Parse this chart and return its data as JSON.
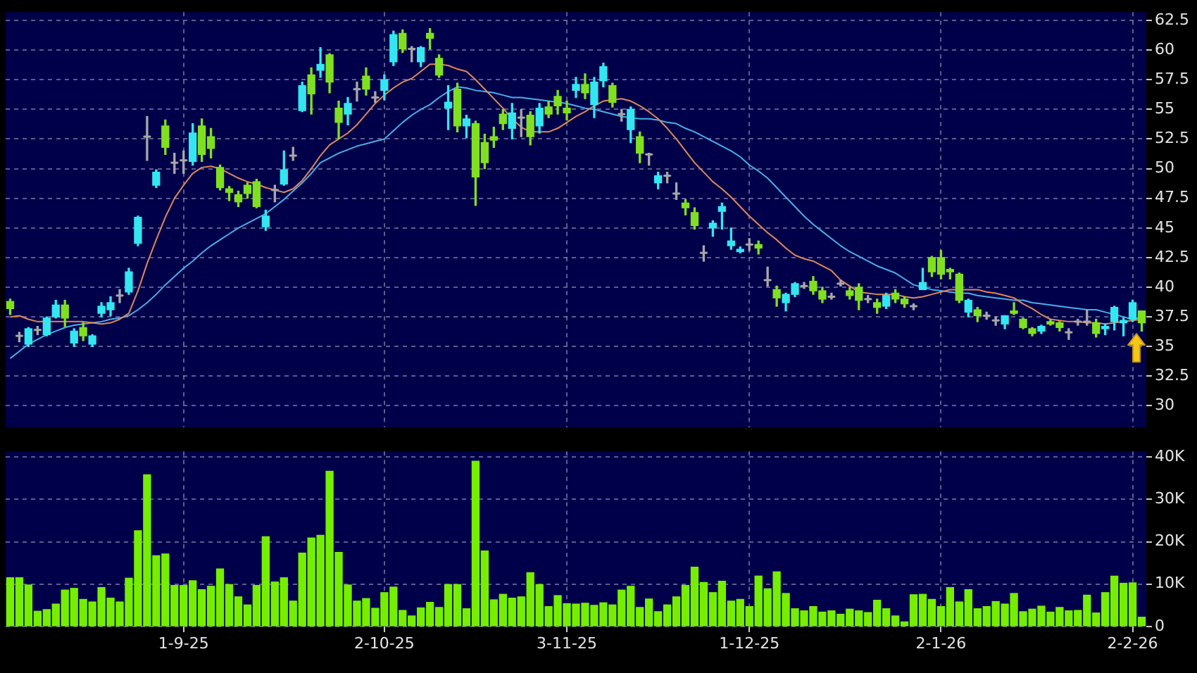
{
  "chart_data": [
    {
      "type": "candlestick",
      "categories": [
        null,
        null,
        null,
        null,
        null,
        null,
        null,
        null,
        null,
        null,
        null,
        null,
        null,
        null,
        null,
        null,
        null,
        null,
        null,
        null,
        null,
        null,
        null,
        null,
        null,
        null,
        null,
        null,
        null,
        null,
        null,
        null,
        null,
        null,
        null,
        null,
        null,
        null,
        null,
        null,
        null,
        null,
        null,
        null,
        null,
        null,
        null,
        null,
        null,
        null,
        null,
        null,
        null,
        null,
        null,
        null,
        null,
        null,
        null,
        null,
        null,
        null,
        null,
        null,
        null,
        null,
        null,
        null,
        null,
        null,
        null,
        null,
        null,
        null,
        null,
        null,
        null,
        null,
        null,
        null,
        null,
        null,
        null,
        null,
        null,
        null,
        null,
        null,
        null,
        null,
        null,
        null,
        null,
        null,
        null,
        null,
        null,
        null,
        null,
        null,
        null,
        null,
        null,
        null,
        null,
        null,
        null,
        null,
        null,
        null,
        null,
        null,
        null,
        null,
        null,
        null,
        null,
        null,
        null,
        null,
        null,
        null,
        null,
        null,
        null
      ],
      "ohlc": [
        [
          38.8,
          39.0,
          37.7,
          38.2
        ],
        [
          35.9,
          36.2,
          35.4,
          35.9
        ],
        [
          35.2,
          36.6,
          35.0,
          36.5
        ],
        [
          36.4,
          36.7,
          36.0,
          36.4
        ],
        [
          36.0,
          37.5,
          35.9,
          37.4
        ],
        [
          37.5,
          38.9,
          37.4,
          38.5
        ],
        [
          38.5,
          38.9,
          36.7,
          37.4
        ],
        [
          35.3,
          36.5,
          35.0,
          36.3
        ],
        [
          36.6,
          37.0,
          35.5,
          35.9
        ],
        [
          35.2,
          36.0,
          35.0,
          35.9
        ],
        [
          37.8,
          38.7,
          37.5,
          38.4
        ],
        [
          38.1,
          39.2,
          37.6,
          38.7
        ],
        [
          39.3,
          39.8,
          38.7,
          39.3
        ],
        [
          39.6,
          41.6,
          39.4,
          41.3
        ],
        [
          43.7,
          46.0,
          43.5,
          45.9
        ],
        [
          52.7,
          54.4,
          50.7,
          52.7
        ],
        [
          48.6,
          49.9,
          48.4,
          49.7
        ],
        [
          53.6,
          54.1,
          51.2,
          51.8
        ],
        [
          50.5,
          51.3,
          49.6,
          50.5
        ],
        [
          50.7,
          51.5,
          49.6,
          50.7
        ],
        [
          50.6,
          53.8,
          50.3,
          53.0
        ],
        [
          53.6,
          54.2,
          50.6,
          51.2
        ],
        [
          52.7,
          53.4,
          50.9,
          51.7
        ],
        [
          50.1,
          50.3,
          48.2,
          48.4
        ],
        [
          48.3,
          48.5,
          47.3,
          48.0
        ],
        [
          47.8,
          48.1,
          46.8,
          47.2
        ],
        [
          48.6,
          48.8,
          47.5,
          47.9
        ],
        [
          48.9,
          49.1,
          46.7,
          46.8
        ],
        [
          45.1,
          46.5,
          44.8,
          46.0
        ],
        [
          48.2,
          48.6,
          47.2,
          48.2
        ],
        [
          48.7,
          51.5,
          48.6,
          49.9
        ],
        [
          51.1,
          51.8,
          50.7,
          51.1
        ],
        [
          54.9,
          57.3,
          54.8,
          57.0
        ],
        [
          57.9,
          58.5,
          54.6,
          56.3
        ],
        [
          58.3,
          60.2,
          57.7,
          58.8
        ],
        [
          59.6,
          59.7,
          56.4,
          57.3
        ],
        [
          55.1,
          55.7,
          52.5,
          53.9
        ],
        [
          54.6,
          56.0,
          53.7,
          55.5
        ],
        [
          56.7,
          57.3,
          55.7,
          56.7
        ],
        [
          57.8,
          58.5,
          56.2,
          56.7
        ],
        [
          56.0,
          56.5,
          55.6,
          56.0
        ],
        [
          56.6,
          57.9,
          55.8,
          57.5
        ],
        [
          59.0,
          61.6,
          58.7,
          61.3
        ],
        [
          61.4,
          61.7,
          59.8,
          60.1
        ],
        [
          60.1,
          60.3,
          59.0,
          60.1
        ],
        [
          59.0,
          60.3,
          58.6,
          60.2
        ],
        [
          61.4,
          61.8,
          60.1,
          61.0
        ],
        [
          59.3,
          59.6,
          57.7,
          57.9
        ],
        [
          55.1,
          57.0,
          53.3,
          55.6
        ],
        [
          56.7,
          57.2,
          53.1,
          53.6
        ],
        [
          53.6,
          54.5,
          52.6,
          54.2
        ],
        [
          53.8,
          54.0,
          46.9,
          49.3
        ],
        [
          52.2,
          52.9,
          50.0,
          50.5
        ],
        [
          52.7,
          53.5,
          51.8,
          52.4
        ],
        [
          54.6,
          55.0,
          53.3,
          53.8
        ],
        [
          53.4,
          55.5,
          52.5,
          54.7
        ],
        [
          54.3,
          55.0,
          52.7,
          54.3
        ],
        [
          54.5,
          54.8,
          52.0,
          52.7
        ],
        [
          53.6,
          55.5,
          53.0,
          55.1
        ],
        [
          55.2,
          55.7,
          54.3,
          54.6
        ],
        [
          56.1,
          56.6,
          54.6,
          55.3
        ],
        [
          55.1,
          55.7,
          54.1,
          54.7
        ],
        [
          56.6,
          57.7,
          56.0,
          57.1
        ],
        [
          57.1,
          58.0,
          55.9,
          56.4
        ],
        [
          55.4,
          57.7,
          54.3,
          57.3
        ],
        [
          57.4,
          58.9,
          56.9,
          58.6
        ],
        [
          57.0,
          57.2,
          55.2,
          55.6
        ],
        [
          54.6,
          55.0,
          54.0,
          54.6
        ],
        [
          53.3,
          55.2,
          52.2,
          55.0
        ],
        [
          52.7,
          53.1,
          50.5,
          51.3
        ],
        [
          51.2,
          51.3,
          50.3,
          51.2
        ],
        [
          48.8,
          49.7,
          48.3,
          49.4
        ],
        [
          49.4,
          49.7,
          48.8,
          49.4
        ],
        [
          47.9,
          48.8,
          47.4,
          47.9
        ],
        [
          47.1,
          47.4,
          46.1,
          46.7
        ],
        [
          46.3,
          46.7,
          44.9,
          45.2
        ],
        [
          42.9,
          43.5,
          42.2,
          42.9
        ],
        [
          45.0,
          45.6,
          44.3,
          45.4
        ],
        [
          46.4,
          47.1,
          44.9,
          46.8
        ],
        [
          43.5,
          45.0,
          43.2,
          43.9
        ],
        [
          43.0,
          43.4,
          42.9,
          43.2
        ],
        [
          43.6,
          44.1,
          43.1,
          43.6
        ],
        [
          43.6,
          43.9,
          42.8,
          43.3
        ],
        [
          40.6,
          41.7,
          40.1,
          40.6
        ],
        [
          39.8,
          40.1,
          38.4,
          39.1
        ],
        [
          38.7,
          39.5,
          38.0,
          39.4
        ],
        [
          39.4,
          40.4,
          39.2,
          40.3
        ],
        [
          40.1,
          40.4,
          39.9,
          40.1
        ],
        [
          40.5,
          40.9,
          39.4,
          39.7
        ],
        [
          39.7,
          40.0,
          38.7,
          39.0
        ],
        [
          39.2,
          39.5,
          39.0,
          39.2
        ],
        [
          40.3,
          40.6,
          40.1,
          40.3
        ],
        [
          39.7,
          40.0,
          39.0,
          39.3
        ],
        [
          40.0,
          40.3,
          38.1,
          38.9
        ],
        [
          39.0,
          39.3,
          38.7,
          39.0
        ],
        [
          38.7,
          39.0,
          37.8,
          38.3
        ],
        [
          38.4,
          39.5,
          38.2,
          39.3
        ],
        [
          39.5,
          39.8,
          38.7,
          39.0
        ],
        [
          39.0,
          39.2,
          38.3,
          38.6
        ],
        [
          38.4,
          38.6,
          38.1,
          38.4
        ],
        [
          39.8,
          41.6,
          39.8,
          40.4
        ],
        [
          42.5,
          42.6,
          40.9,
          41.3
        ],
        [
          42.5,
          43.1,
          40.7,
          41.1
        ],
        [
          41.5,
          41.6,
          40.7,
          41.3
        ],
        [
          41.1,
          41.2,
          38.7,
          38.9
        ],
        [
          37.9,
          39.0,
          37.5,
          38.9
        ],
        [
          38.1,
          38.3,
          37.1,
          37.6
        ],
        [
          37.6,
          37.9,
          37.3,
          37.6
        ],
        [
          37.2,
          37.5,
          36.8,
          37.2
        ],
        [
          36.9,
          37.6,
          36.5,
          37.6
        ],
        [
          38.0,
          38.7,
          37.7,
          37.8
        ],
        [
          37.3,
          37.4,
          36.5,
          36.6
        ],
        [
          36.5,
          36.6,
          35.9,
          36.1
        ],
        [
          36.3,
          36.8,
          36.1,
          36.7
        ],
        [
          37.1,
          37.3,
          36.8,
          36.9
        ],
        [
          37.0,
          37.1,
          36.3,
          36.6
        ],
        [
          36.2,
          36.5,
          35.6,
          36.2
        ],
        [
          37.1,
          37.3,
          36.8,
          37.1
        ],
        [
          37.1,
          38.1,
          36.8,
          37.1
        ],
        [
          37.0,
          37.3,
          35.8,
          36.1
        ],
        [
          36.5,
          36.9,
          36.0,
          36.7
        ],
        [
          37.1,
          38.4,
          36.4,
          38.3
        ],
        [
          37.0,
          37.4,
          35.9,
          37.2
        ],
        [
          37.3,
          38.9,
          37.1,
          38.7
        ],
        [
          38.0,
          38.0,
          36.3,
          37.0
        ]
      ],
      "colors": [
        "#80e020",
        "#a8a8a8",
        "#33e6f0",
        "#a8a8a8",
        "#33e6f0",
        "#33e6f0",
        "#80e020",
        "#33e6f0",
        "#80e020",
        "#33e6f0",
        "#33e6f0",
        "#33e6f0",
        "#a8a8a8",
        "#33e6f0",
        "#33e6f0",
        "#a8a8a8",
        "#33e6f0",
        "#80e020",
        "#a8a8a8",
        "#a8a8a8",
        "#33e6f0",
        "#80e020",
        "#80e020",
        "#80e020",
        "#80e020",
        "#80e020",
        "#80e020",
        "#80e020",
        "#33e6f0",
        "#a8a8a8",
        "#33e6f0",
        "#a8a8a8",
        "#33e6f0",
        "#80e020",
        "#33e6f0",
        "#80e020",
        "#80e020",
        "#33e6f0",
        "#a8a8a8",
        "#80e020",
        "#a8a8a8",
        "#33e6f0",
        "#33e6f0",
        "#80e020",
        "#a8a8a8",
        "#33e6f0",
        "#80e020",
        "#80e020",
        "#33e6f0",
        "#80e020",
        "#33e6f0",
        "#80e020",
        "#80e020",
        "#80e020",
        "#80e020",
        "#33e6f0",
        "#a8a8a8",
        "#80e020",
        "#33e6f0",
        "#80e020",
        "#80e020",
        "#80e020",
        "#33e6f0",
        "#80e020",
        "#33e6f0",
        "#33e6f0",
        "#80e020",
        "#a8a8a8",
        "#33e6f0",
        "#80e020",
        "#a8a8a8",
        "#33e6f0",
        "#a8a8a8",
        "#a8a8a8",
        "#80e020",
        "#80e020",
        "#a8a8a8",
        "#33e6f0",
        "#33e6f0",
        "#33e6f0",
        "#33e6f0",
        "#a8a8a8",
        "#80e020",
        "#a8a8a8",
        "#80e020",
        "#33e6f0",
        "#33e6f0",
        "#a8a8a8",
        "#80e020",
        "#80e020",
        "#a8a8a8",
        "#a8a8a8",
        "#80e020",
        "#80e020",
        "#a8a8a8",
        "#80e020",
        "#33e6f0",
        "#80e020",
        "#80e020",
        "#a8a8a8",
        "#33e6f0",
        "#80e020",
        "#80e020",
        "#80e020",
        "#80e020",
        "#33e6f0",
        "#80e020",
        "#a8a8a8",
        "#a8a8a8",
        "#33e6f0",
        "#80e020",
        "#80e020",
        "#80e020",
        "#33e6f0",
        "#80e020",
        "#80e020",
        "#a8a8a8",
        "#a8a8a8",
        "#a8a8a8",
        "#80e020",
        "#33e6f0",
        "#33e6f0",
        "#33e6f0",
        "#33e6f0",
        "#80e020"
      ],
      "series": [
        {
          "type": "line",
          "color": "#e0885a",
          "values": [
            37.5,
            37.6,
            37.3,
            37.1,
            37.1,
            37.1,
            37.1,
            37.1,
            37.1,
            37.0,
            36.9,
            37.0,
            37.3,
            37.8,
            39.7,
            42.0,
            44.0,
            45.9,
            47.5,
            48.6,
            49.6,
            50.1,
            50.2,
            50.0,
            49.6,
            49.2,
            48.9,
            48.7,
            48.4,
            48.2,
            48.0,
            48.3,
            49.0,
            50.0,
            51.1,
            52.0,
            52.5,
            53.0,
            53.7,
            54.6,
            55.5,
            56.2,
            56.8,
            57.3,
            57.6,
            58.2,
            58.8,
            58.8,
            58.7,
            58.4,
            58.2,
            57.5,
            56.7,
            55.9,
            55.1,
            54.2,
            53.5,
            53.1,
            53.1,
            53.1,
            53.4,
            53.9,
            54.4,
            54.8,
            55.3,
            55.7,
            55.8,
            55.9,
            55.7,
            55.3,
            54.8,
            54.2,
            53.4,
            52.5,
            51.5,
            50.5,
            49.7,
            48.9,
            48.3,
            47.6,
            46.8,
            46.0,
            45.3,
            44.6,
            44.0,
            43.3,
            42.7,
            42.4,
            42.2,
            41.8,
            41.4,
            40.6,
            40.1,
            39.6,
            39.5,
            39.4,
            39.4,
            39.4,
            39.2,
            39.1,
            39.2,
            39.4,
            39.6,
            39.8,
            39.8,
            39.8,
            39.8,
            39.6,
            39.5,
            39.3,
            39.1,
            38.6,
            38.2,
            37.7,
            37.3,
            37.2,
            37.1,
            37.1,
            37.0,
            37.0,
            36.9,
            37.0,
            37.1,
            37.2,
            37.3
          ]
        },
        {
          "type": "line",
          "color": "#4aaee8",
          "values": [
            34.0,
            34.6,
            35.2,
            35.6,
            36.0,
            36.3,
            36.6,
            36.8,
            36.9,
            37.0,
            37.1,
            37.3,
            37.4,
            37.6,
            38.1,
            38.7,
            39.4,
            40.2,
            40.9,
            41.6,
            42.2,
            42.9,
            43.5,
            44.0,
            44.5,
            45.0,
            45.4,
            45.8,
            46.2,
            46.8,
            47.4,
            48.1,
            48.8,
            49.6,
            50.5,
            50.9,
            51.3,
            51.6,
            51.9,
            52.1,
            52.3,
            52.5,
            53.2,
            53.9,
            54.5,
            55.0,
            55.4,
            56.0,
            56.5,
            56.9,
            56.8,
            56.6,
            56.5,
            56.4,
            56.2,
            56.0,
            56.0,
            55.9,
            55.8,
            55.7,
            55.6,
            55.5,
            55.3,
            55.1,
            55.0,
            54.8,
            54.6,
            54.4,
            54.3,
            54.2,
            54.2,
            54.1,
            53.9,
            53.8,
            53.4,
            53.1,
            52.7,
            52.3,
            51.9,
            51.5,
            51.0,
            50.3,
            49.8,
            49.2,
            48.4,
            47.6,
            46.8,
            46.0,
            45.3,
            44.7,
            44.1,
            43.5,
            43.0,
            42.6,
            42.2,
            41.8,
            41.5,
            41.2,
            40.7,
            40.2,
            40.0,
            39.8,
            39.7,
            39.6,
            39.5,
            39.5,
            39.3,
            39.2,
            39.1,
            39.0,
            38.9,
            38.9,
            38.7,
            38.6,
            38.5,
            38.4,
            38.3,
            38.2,
            38.1,
            38.1,
            37.9,
            37.7,
            37.5,
            37.3,
            37.5
          ]
        }
      ],
      "ylim": [
        28.2,
        63.2
      ],
      "yticks": [
        30,
        32.5,
        35,
        37.5,
        40,
        42.5,
        45,
        47.5,
        50,
        52.5,
        55,
        57.5,
        60,
        62.5
      ],
      "grid": true,
      "tick_labels": "y"
    },
    {
      "type": "bar",
      "categories": [
        null,
        null,
        null,
        null,
        null,
        null,
        null,
        null,
        null,
        null,
        null,
        null,
        null,
        null,
        null,
        null,
        null,
        null,
        null,
        "1-9-25",
        null,
        null,
        null,
        null,
        null,
        null,
        null,
        null,
        null,
        null,
        null,
        null,
        null,
        null,
        null,
        null,
        null,
        null,
        null,
        null,
        null,
        "2-10-25",
        null,
        null,
        null,
        null,
        null,
        null,
        null,
        null,
        null,
        null,
        null,
        null,
        null,
        null,
        null,
        null,
        null,
        null,
        null,
        "3-11-25",
        null,
        null,
        null,
        null,
        null,
        null,
        null,
        null,
        null,
        null,
        null,
        null,
        null,
        null,
        null,
        null,
        null,
        null,
        null,
        "1-12-25",
        null,
        null,
        null,
        null,
        null,
        null,
        null,
        null,
        null,
        null,
        null,
        null,
        null,
        null,
        null,
        null,
        null,
        null,
        null,
        null,
        "2-1-26",
        null,
        null,
        null,
        null,
        null,
        null,
        null,
        null,
        null,
        null,
        null,
        null,
        null,
        null,
        null,
        null,
        null,
        null,
        null,
        null,
        "2-2-26",
        null
      ],
      "color": "#76ee00",
      "values": [
        11500,
        11500,
        9800,
        3600,
        4000,
        5300,
        8600,
        9000,
        6400,
        5800,
        9200,
        6700,
        5800,
        11400,
        22600,
        35800,
        16700,
        17100,
        9700,
        9700,
        10800,
        8700,
        9500,
        13600,
        9900,
        7000,
        5100,
        9700,
        21200,
        10500,
        11500,
        6000,
        17300,
        20900,
        21500,
        36600,
        17500,
        9800,
        6000,
        6600,
        4300,
        8000,
        9300,
        3800,
        2500,
        4400,
        5700,
        4500,
        9900,
        9900,
        4200,
        39000,
        17800,
        6300,
        7600,
        6700,
        7000,
        12700,
        9900,
        4700,
        7300,
        5400,
        5300,
        5500,
        5000,
        5600,
        5100,
        8600,
        9500,
        4500,
        6500,
        3500,
        5100,
        7000,
        9700,
        14000,
        10400,
        8000,
        10700,
        6000,
        6400,
        4700,
        11900,
        8900,
        12900,
        7800,
        4200,
        3700,
        4700,
        3400,
        3700,
        2900,
        4100,
        3700,
        3300,
        6200,
        4200,
        2500,
        1100,
        7500,
        7600,
        6400,
        4700,
        9200,
        5800,
        8700,
        4200,
        4700,
        5900,
        5300,
        7800,
        3500,
        4100,
        4800,
        3400,
        4500,
        3700,
        3800,
        7400,
        3200,
        8000,
        11900,
        10200,
        10300,
        2200
      ],
      "ylim": [
        0,
        41300
      ],
      "yticks": [
        0,
        {
          "value": 10000,
          "label": "10K"
        },
        {
          "value": 20000,
          "label": "20K"
        },
        {
          "value": 30000,
          "label": "30K"
        },
        {
          "value": 40000,
          "label": "40K"
        }
      ],
      "grid": true
    }
  ]
}
